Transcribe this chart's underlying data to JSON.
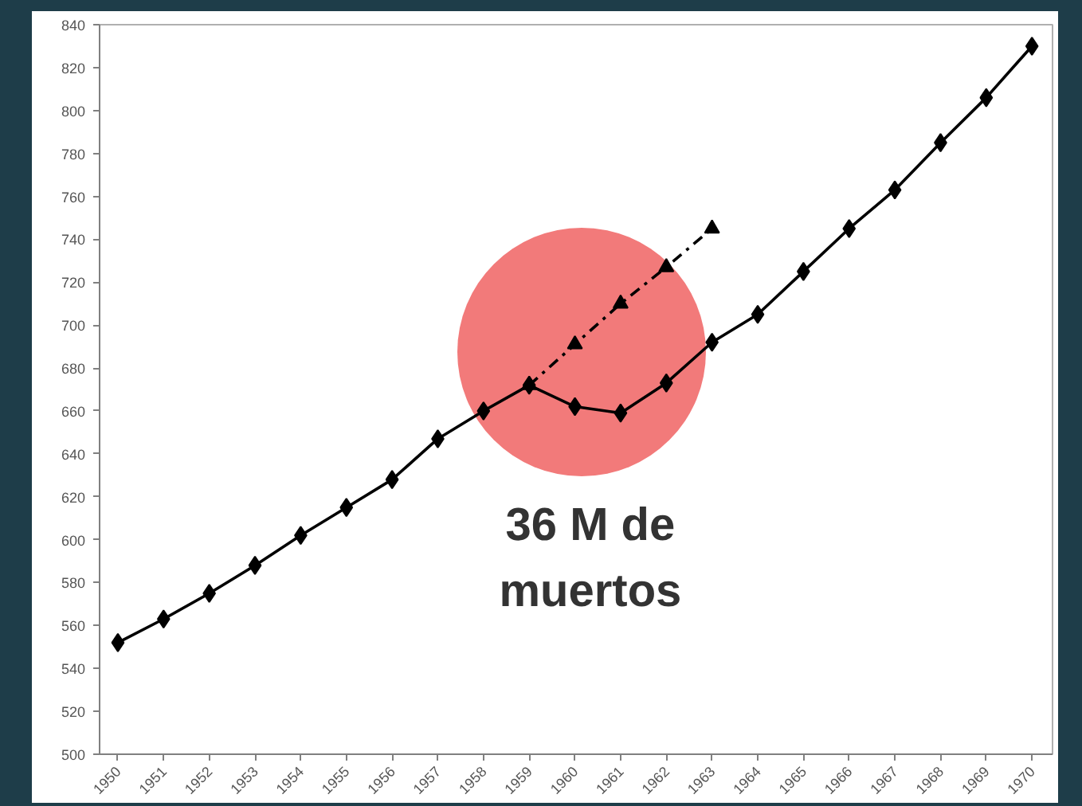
{
  "chart_data": {
    "type": "line",
    "x": [
      1950,
      1951,
      1952,
      1953,
      1954,
      1955,
      1956,
      1957,
      1958,
      1959,
      1960,
      1961,
      1962,
      1963,
      1964,
      1965,
      1966,
      1967,
      1968,
      1969,
      1970
    ],
    "series": [
      {
        "color": "#000000",
        "marker": "diamond",
        "line_style": "solid",
        "values": [
          552,
          563,
          575,
          588,
          602,
          615,
          628,
          647,
          660,
          672,
          662,
          659,
          673,
          692,
          705,
          725,
          745,
          763,
          785,
          806,
          830
        ]
      },
      {
        "color": "#000000",
        "marker": "triangle",
        "line_style": "dashed",
        "x": [
          1959,
          1960,
          1961,
          1962,
          1963
        ],
        "values": [
          672,
          691,
          710,
          727,
          745
        ]
      }
    ],
    "xlim": [
      1949.6,
      1970.45
    ],
    "xticks": [
      1950,
      1951,
      1952,
      1953,
      1954,
      1955,
      1956,
      1957,
      1958,
      1959,
      1960,
      1961,
      1962,
      1963,
      1964,
      1965,
      1966,
      1967,
      1968,
      1969,
      1970
    ],
    "ylim": [
      500,
      840
    ],
    "yticks": [
      500,
      520,
      540,
      560,
      580,
      600,
      620,
      640,
      660,
      680,
      700,
      720,
      740,
      760,
      780,
      800,
      820,
      840
    ],
    "annotations": [
      "36 M de\nmuertos"
    ]
  }
}
